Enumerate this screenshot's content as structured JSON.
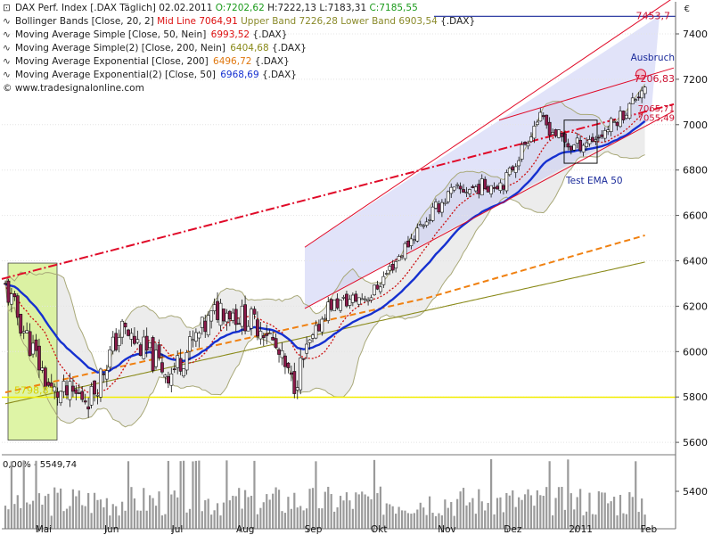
{
  "legend": {
    "symbol": "DAX Perf. Index [.DAX  Täglich]",
    "date": "02.02.2011",
    "ohlc_o": "O:7202,62",
    "ohlc_h": "H:7222,13",
    "ohlc_l": "L:7183,31",
    "ohlc_c": "C:7185,55",
    "bb_label": "Bollinger Bands [Close, 20, 2]",
    "bb_mid": "Mid Line 7064,91",
    "bb_upper": "Upper Band 7226,28",
    "bb_lower": "Lower Band 6903,54",
    "bb_suffix": "{.DAX}",
    "sma50_label": "Moving Average Simple [Close, 50, Nein]",
    "sma50_val": "6993,52",
    "sma200_label": "Moving Average Simple(2) [Close, 200, Nein]",
    "sma200_val": "6404,68",
    "ema200_label": "Moving Average Exponential [Close, 200]",
    "ema200_val": "6496,72",
    "ema50_label": "Moving Average Exponential(2) [Close, 50]",
    "ema50_val": "6968,69",
    "suffix": "{.DAX}",
    "copyright": "© www.tradesignalonline.com"
  },
  "currency": "€",
  "colors": {
    "up_candle": "#ffffff",
    "down_candle": "#8b1a4a",
    "bb_line": "#a8a878",
    "bb_fill": "#ececec",
    "sma50": "#cc1111",
    "sma200": "#8a8a1a",
    "ema200": "#f08010",
    "ema50": "#1530d0",
    "channel": "#e00a28",
    "channel_fill": "#c8ccf4",
    "support": "#f2ee00",
    "highlight": "#d8f296",
    "target_line": "#1a2a9a"
  },
  "chart_data": {
    "type": "candlestick",
    "title": "DAX Perf. Index [.DAX  Täglich]",
    "x_labels": [
      "Mai",
      "Jun",
      "Jul",
      "Aug",
      "Sep",
      "Okt",
      "Nov",
      "Dez",
      "2011",
      "Feb"
    ],
    "y_ticks": [
      5600,
      5800,
      6000,
      6200,
      6400,
      6600,
      6800,
      7000,
      7200,
      7400
    ],
    "ylim": [
      5530,
      7560
    ],
    "volume_y_ticks": [
      5400
    ],
    "volume_label": "0,00% - 5549,74",
    "levels": [
      {
        "name": "support",
        "value": 5798.8,
        "label": "5798,81"
      },
      {
        "name": "target",
        "value": 7453.7,
        "label": "7453,7"
      }
    ],
    "price_labels": [
      {
        "name": "last",
        "label": "7206,83",
        "value": 7206.83
      },
      {
        "name": "sma-label",
        "label": "7065,71",
        "value": 7065.71
      },
      {
        "name": "mid-label",
        "label": "7055,49",
        "value": 7055.49
      }
    ],
    "annotations": [
      "Ausbruch",
      "Test EMA 50"
    ],
    "monthly_anchors": {
      "dates": [
        "2010-04-16",
        "2010-05-07",
        "2010-05-25",
        "2010-06-08",
        "2010-06-30",
        "2010-07-23",
        "2010-08-13",
        "2010-08-25",
        "2010-09-10",
        "2010-09-30",
        "2010-10-22",
        "2010-11-05",
        "2010-11-30",
        "2010-12-15",
        "2010-12-30",
        "2011-01-12",
        "2011-01-25",
        "2011-02-02"
      ],
      "close": [
        6280,
        5820,
        5800,
        6100,
        5900,
        6200,
        6100,
        5850,
        6200,
        6250,
        6550,
        6700,
        6750,
        7030,
        6900,
        6950,
        7070,
        7185
      ]
    }
  }
}
